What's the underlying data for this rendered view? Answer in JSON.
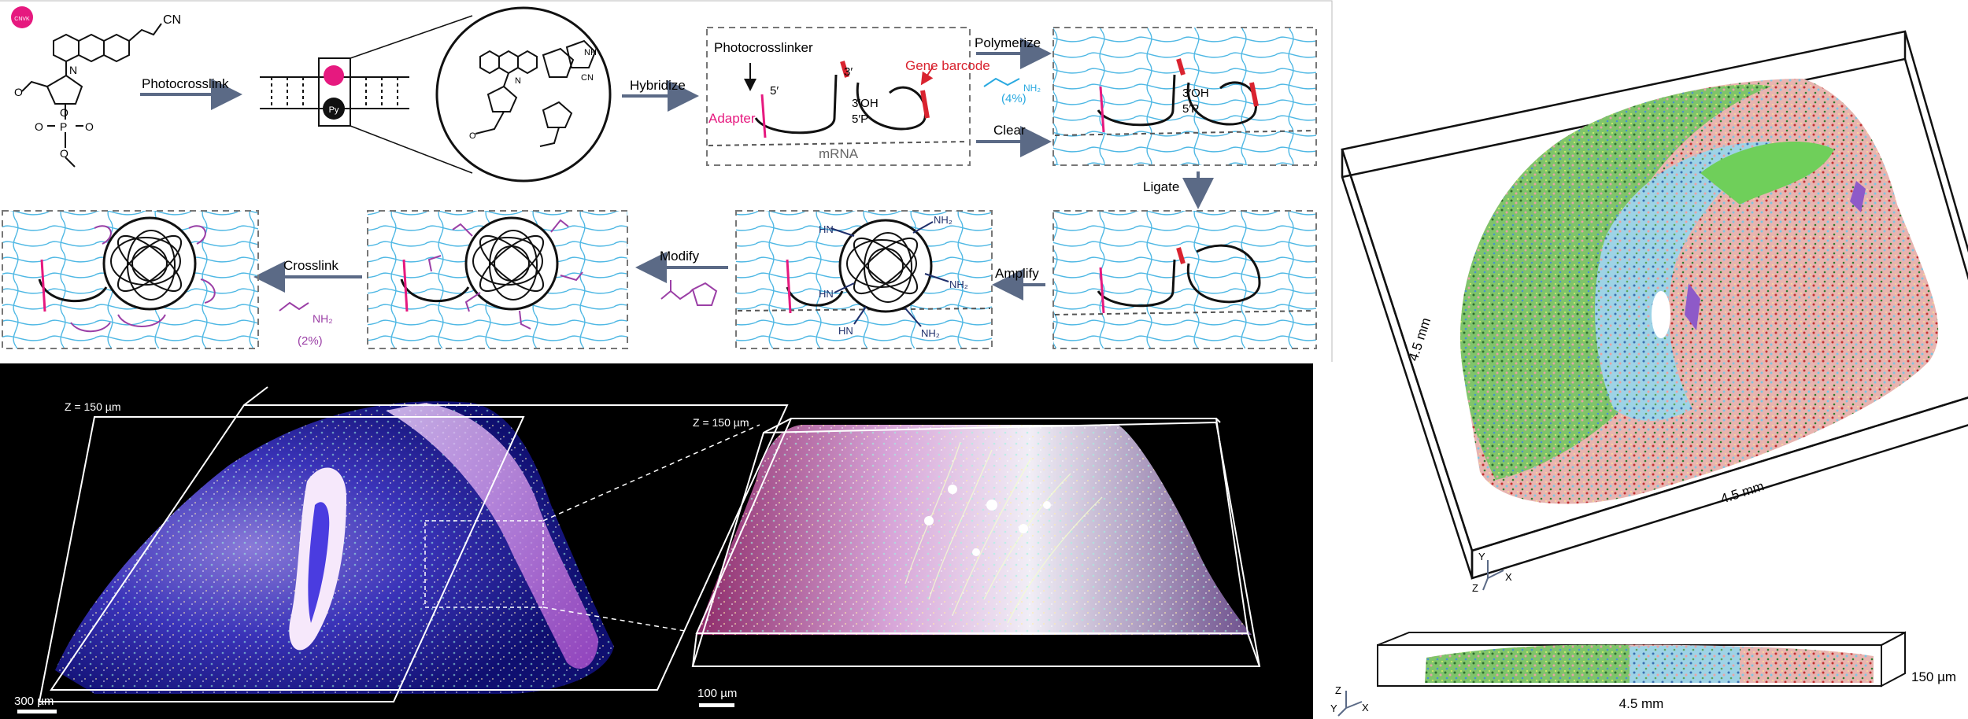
{
  "colors": {
    "magenta": "#e6197f",
    "purple": "#9b3fa6",
    "blue_arrow": "#5b6a86",
    "cyan": "#29a9e0",
    "gel_line": "#4fb8e4",
    "dark_navy": "#1f2f6b",
    "red_barcode": "#d9232f"
  },
  "icons": [
    "cnvk-badge-icon",
    "arrow-right-icon",
    "arrow-left-icon",
    "arrow-down-icon",
    "axis-triad-icon"
  ],
  "top": {
    "cnvk_label": "CNVK",
    "cn_label": "CN",
    "py_label": "Py",
    "cn_ring_label": "CN",
    "nh_label": "NH",
    "n_label": "N",
    "n2_label": "N",
    "o_label": "O",
    "o2_label": "O",
    "p_label": "P",
    "o3_label": "O",
    "o4_label": "O",
    "o5_label": "O",
    "o6_label": "O",
    "photocrosslink": "Photocrosslink",
    "hybridize": "Hybridize",
    "polymerize": "Polymerize",
    "clear": "Clear",
    "ligate": "Ligate",
    "amplify": "Amplify",
    "modify": "Modify",
    "crosslink": "Crosslink",
    "photocrosslinker": "Photocrosslinker",
    "gene_barcode": "Gene barcode",
    "adapter": "Adapter",
    "mrna": "mRNA",
    "five_prime": "5′",
    "three_prime": "3′",
    "three_oh": "3′OH",
    "five_p": "5′P",
    "three_oh_2": "3′OH",
    "five_p_2": "5′P",
    "acrylamide_4": "(4%)",
    "acrylamide_2": "(2%)",
    "nh2_label": "NH₂",
    "nh2_label_2": "NH₂",
    "hn_label": "HN",
    "hn_label_2": "HN",
    "hn_label_3": "HN",
    "nh2_a": "NH₂",
    "nh2_b": "NH₂",
    "nh2_c": "NH₂"
  },
  "bottom_left": {
    "z_label": "Z = 150 µm",
    "scale": "300 µm"
  },
  "bottom_mid": {
    "z_label": "Z = 150 µm",
    "scale": "100 µm"
  },
  "right": {
    "dim_left": "4.5 mm",
    "dim_bottom": "4.5 mm",
    "axis_y": "Y",
    "axis_x": "X",
    "axis_z": "Z",
    "slab_width": "4.5 mm",
    "slab_height": "150 µm",
    "axis2_z": "Z",
    "axis2_y": "Y",
    "axis2_x": "X"
  }
}
